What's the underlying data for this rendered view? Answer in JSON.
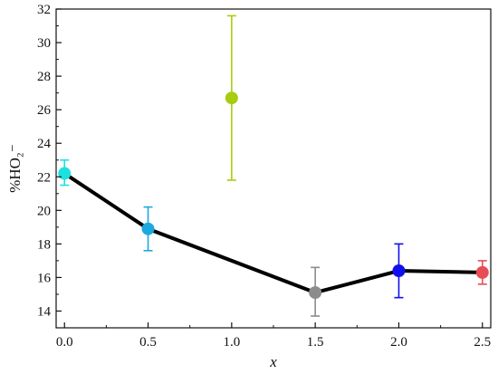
{
  "chart_data": {
    "type": "line",
    "title": "",
    "xlabel": "x",
    "ylabel": "%HO₂⁻",
    "xlim": [
      -0.05,
      2.55
    ],
    "ylim": [
      13,
      32
    ],
    "x_ticks": [
      0.0,
      0.5,
      1.0,
      1.5,
      2.0,
      2.5
    ],
    "x_tick_labels": [
      "0.0",
      "0.5",
      "1.0",
      "1.5",
      "2.0",
      "2.5"
    ],
    "y_ticks": [
      14,
      16,
      18,
      20,
      22,
      24,
      26,
      28,
      30,
      32
    ],
    "y_tick_labels": [
      "14",
      "16",
      "18",
      "20",
      "22",
      "24",
      "26",
      "28",
      "30",
      "32"
    ],
    "grid": false,
    "line": {
      "color": "#000000",
      "x": [
        0.0,
        0.5,
        1.5,
        2.0,
        2.5
      ],
      "y": [
        22.2,
        18.9,
        15.1,
        16.4,
        16.3
      ]
    },
    "points": [
      {
        "x": 0.0,
        "y": 22.2,
        "err_low": 21.5,
        "err_high": 23.0,
        "color": "#1ee0e0"
      },
      {
        "x": 0.5,
        "y": 18.9,
        "err_low": 17.6,
        "err_high": 20.2,
        "color": "#1ea8e0"
      },
      {
        "x": 1.0,
        "y": 26.7,
        "err_low": 21.8,
        "err_high": 31.6,
        "color": "#a8cc10"
      },
      {
        "x": 1.5,
        "y": 15.1,
        "err_low": 13.7,
        "err_high": 16.6,
        "color": "#8c8c8c"
      },
      {
        "x": 2.0,
        "y": 16.4,
        "err_low": 14.8,
        "err_high": 18.0,
        "color": "#1010ee"
      },
      {
        "x": 2.5,
        "y": 16.3,
        "err_low": 15.6,
        "err_high": 17.0,
        "color": "#e84c55"
      }
    ]
  }
}
